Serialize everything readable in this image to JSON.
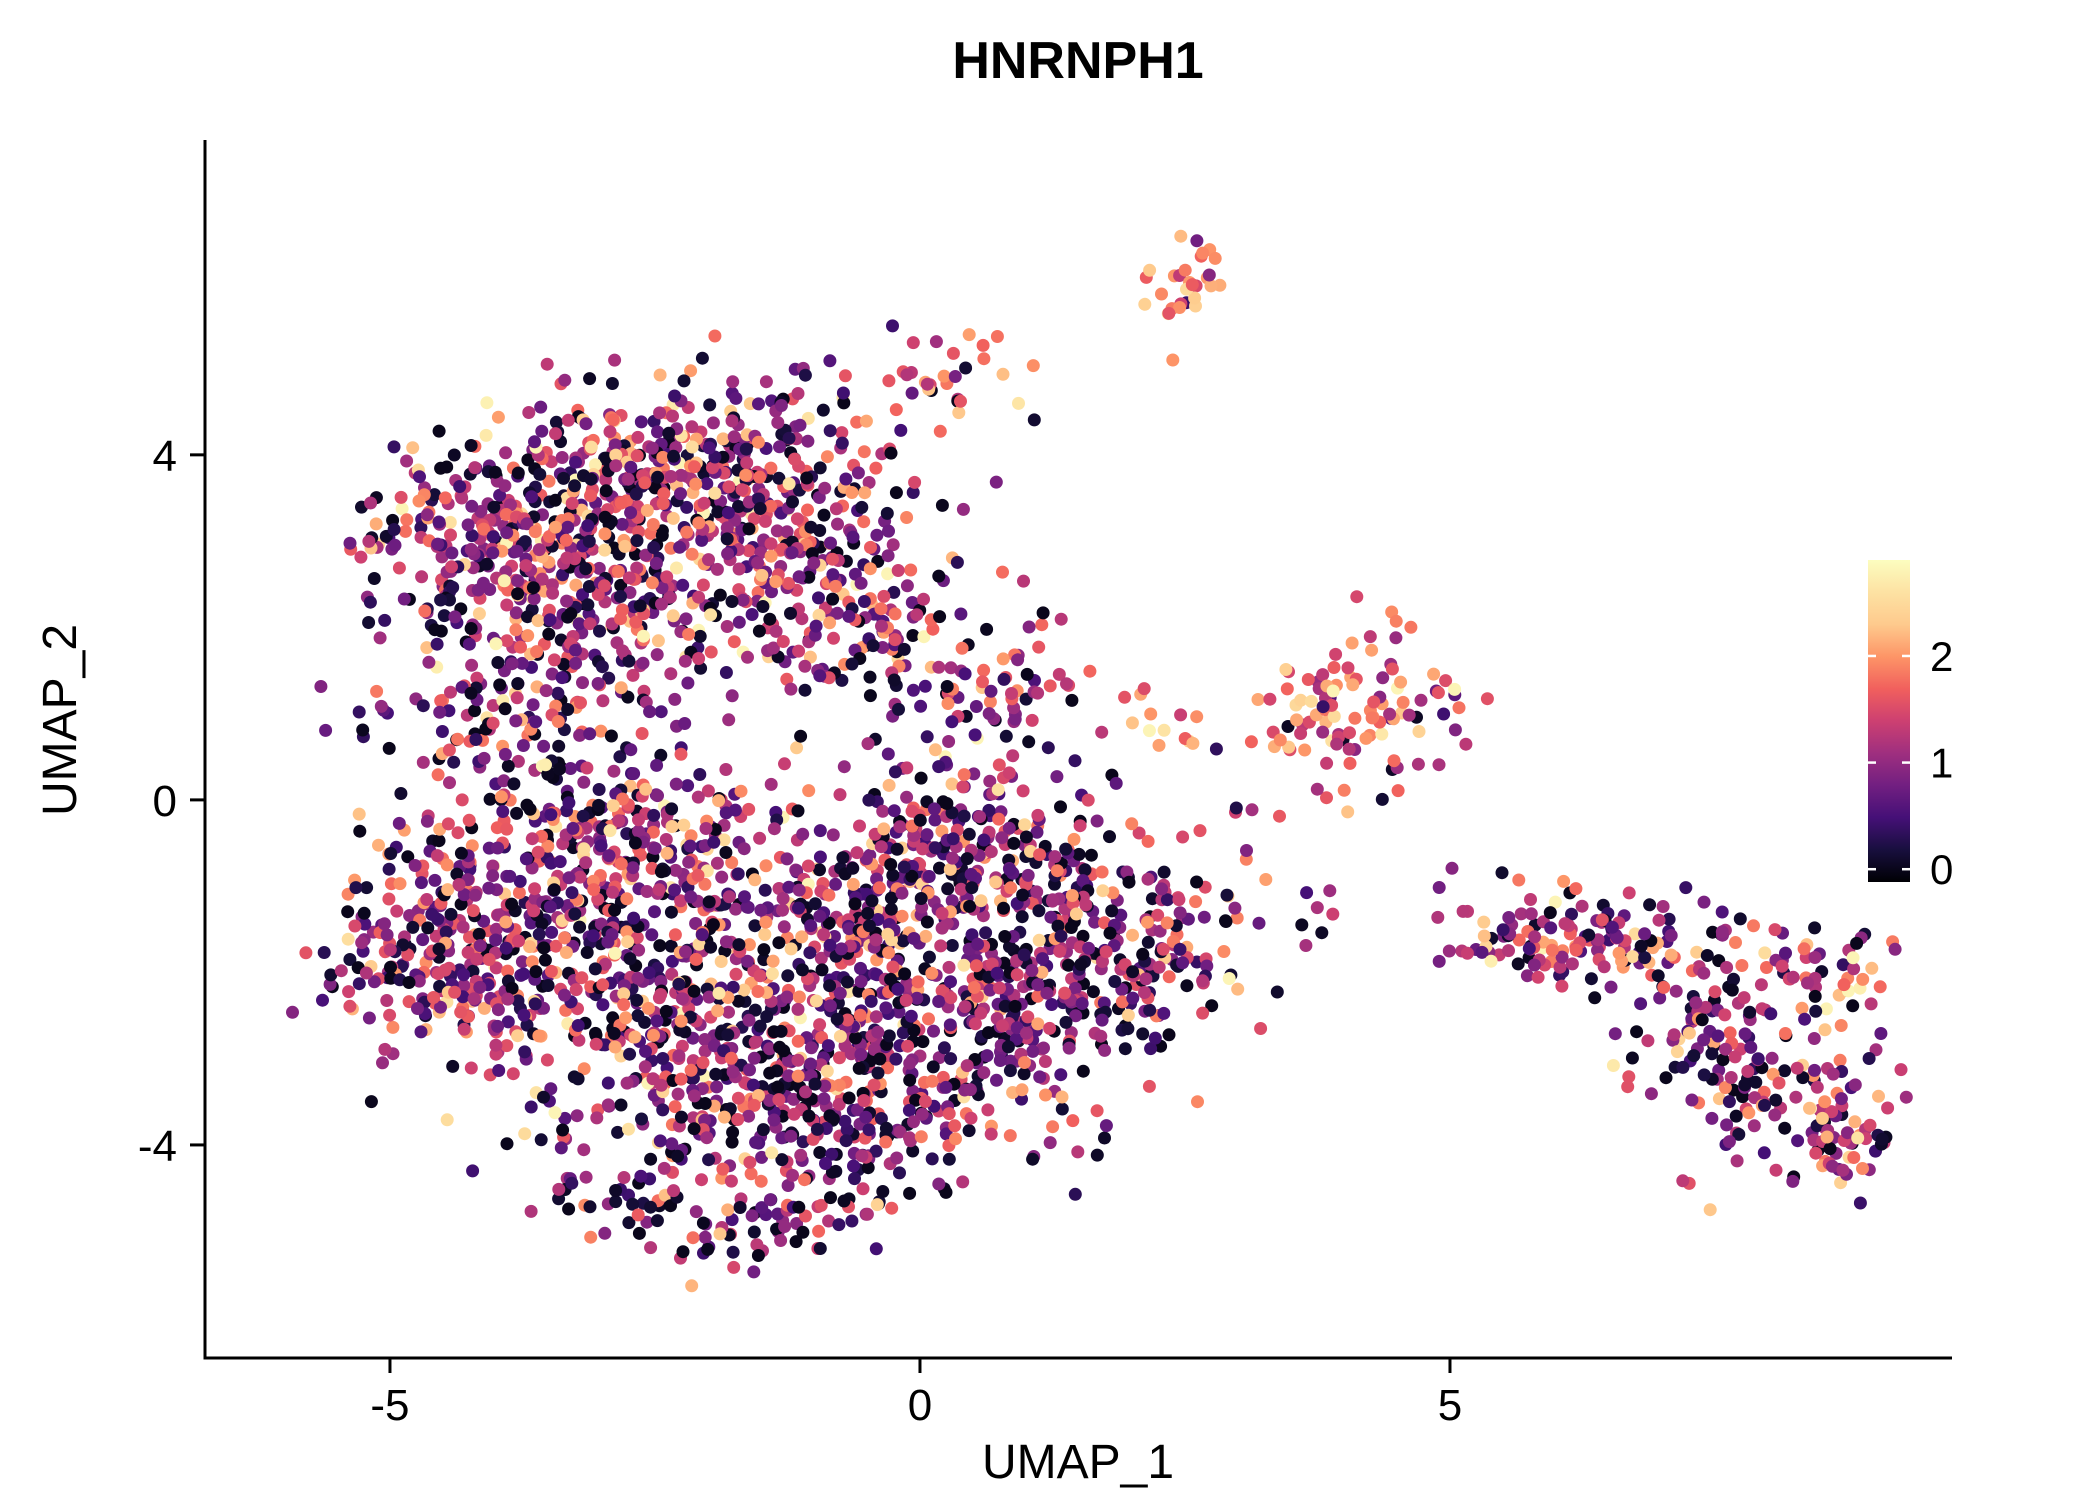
{
  "title": "HNRNPH1",
  "colors": {
    "background": "#ffffff",
    "axis": "#000000",
    "text": "#000000"
  },
  "chart_data": {
    "type": "scatter",
    "title": "HNRNPH1",
    "xlabel": "UMAP_1",
    "ylabel": "UMAP_2",
    "xlim": [
      -6.745,
      9.736
    ],
    "ylim": [
      -6.47,
      7.65
    ],
    "x_ticks": [
      -5,
      0,
      5
    ],
    "y_ticks": [
      -4,
      0,
      4
    ],
    "grid": false,
    "point_radius_px": 6.5,
    "value_range": [
      0,
      2.8
    ],
    "colorbar": {
      "position": "right",
      "ticks": [
        0,
        1,
        2
      ],
      "range": [
        -0.12,
        2.9
      ],
      "colormap": "magma",
      "stops": [
        "#000004",
        "#180f3e",
        "#451077",
        "#721f81",
        "#9f2f7f",
        "#cd4071",
        "#f1605d",
        "#fd9567",
        "#feca8d",
        "#fde2a3",
        "#fcfdbf"
      ]
    },
    "clusters": [
      {
        "cx": -3.4,
        "cy": 3.2,
        "sx": 0.75,
        "sy": 0.65,
        "n": 240,
        "mean": 1.15,
        "sd": 0.75,
        "zero_frac": 0.1
      },
      {
        "cx": -2.0,
        "cy": 3.9,
        "sx": 0.85,
        "sy": 0.55,
        "n": 300,
        "mean": 1.2,
        "sd": 0.75,
        "zero_frac": 0.1
      },
      {
        "cx": -1.3,
        "cy": 2.7,
        "sx": 0.7,
        "sy": 0.6,
        "n": 190,
        "mean": 1.2,
        "sd": 0.75,
        "zero_frac": 0.1
      },
      {
        "cx": -4.35,
        "cy": 2.9,
        "sx": 0.5,
        "sy": 0.55,
        "n": 130,
        "mean": 1.1,
        "sd": 0.7,
        "zero_frac": 0.12
      },
      {
        "cx": -0.4,
        "cy": 2.1,
        "sx": 0.55,
        "sy": 0.75,
        "n": 110,
        "mean": 1.15,
        "sd": 0.75,
        "zero_frac": 0.1
      },
      {
        "cx": -2.9,
        "cy": 2.2,
        "sx": 0.8,
        "sy": 0.5,
        "n": 150,
        "mean": 1.15,
        "sd": 0.75,
        "zero_frac": 0.1
      },
      {
        "cx": 0.2,
        "cy": 4.6,
        "sx": 0.35,
        "sy": 0.3,
        "n": 22,
        "mean": 1.5,
        "sd": 0.6,
        "zero_frac": 0.05
      },
      {
        "cx": 0.7,
        "cy": 5.0,
        "sx": 0.25,
        "sy": 0.2,
        "n": 8,
        "mean": 1.6,
        "sd": 0.5,
        "zero_frac": 0.05
      },
      {
        "cx": 2.5,
        "cy": 5.9,
        "sx": 0.22,
        "sy": 0.28,
        "n": 30,
        "mean": 1.8,
        "sd": 0.55,
        "zero_frac": 0.03
      },
      {
        "cx": -4.1,
        "cy": 0.9,
        "sx": 0.55,
        "sy": 0.6,
        "n": 90,
        "mean": 1.0,
        "sd": 0.7,
        "zero_frac": 0.12
      },
      {
        "cx": -3.1,
        "cy": 1.3,
        "sx": 0.5,
        "sy": 0.5,
        "n": 60,
        "mean": 1.0,
        "sd": 0.7,
        "zero_frac": 0.12
      },
      {
        "cx": 0.55,
        "cy": 0.95,
        "sx": 0.45,
        "sy": 0.55,
        "n": 55,
        "mean": 1.2,
        "sd": 0.7,
        "zero_frac": 0.1
      },
      {
        "cx": 1.1,
        "cy": 1.8,
        "sx": 0.3,
        "sy": 0.4,
        "n": 14,
        "mean": 1.2,
        "sd": 0.7,
        "zero_frac": 0.1
      },
      {
        "cx": -3.6,
        "cy": -1.5,
        "sx": 0.9,
        "sy": 0.85,
        "n": 340,
        "mean": 1.05,
        "sd": 0.75,
        "zero_frac": 0.13
      },
      {
        "cx": -2.2,
        "cy": -2.7,
        "sx": 0.9,
        "sy": 0.8,
        "n": 340,
        "mean": 1.05,
        "sd": 0.75,
        "zero_frac": 0.13
      },
      {
        "cx": -1.0,
        "cy": -3.6,
        "sx": 0.8,
        "sy": 0.65,
        "n": 240,
        "mean": 1.0,
        "sd": 0.75,
        "zero_frac": 0.14
      },
      {
        "cx": -2.6,
        "cy": -0.55,
        "sx": 0.9,
        "sy": 0.6,
        "n": 240,
        "mean": 1.1,
        "sd": 0.75,
        "zero_frac": 0.12
      },
      {
        "cx": -4.6,
        "cy": -1.9,
        "sx": 0.45,
        "sy": 0.7,
        "n": 120,
        "mean": 1.05,
        "sd": 0.7,
        "zero_frac": 0.13
      },
      {
        "cx": -0.6,
        "cy": -1.7,
        "sx": 0.8,
        "sy": 0.8,
        "n": 220,
        "mean": 1.05,
        "sd": 0.75,
        "zero_frac": 0.13
      },
      {
        "cx": 0.4,
        "cy": -2.6,
        "sx": 0.75,
        "sy": 0.7,
        "n": 200,
        "mean": 1.0,
        "sd": 0.75,
        "zero_frac": 0.14
      },
      {
        "cx": 1.4,
        "cy": -2.0,
        "sx": 0.7,
        "sy": 0.6,
        "n": 200,
        "mean": 1.0,
        "sd": 0.75,
        "zero_frac": 0.13
      },
      {
        "cx": 0.6,
        "cy": -0.6,
        "sx": 0.6,
        "sy": 0.55,
        "n": 120,
        "mean": 1.1,
        "sd": 0.7,
        "zero_frac": 0.12
      },
      {
        "cx": -2.6,
        "cy": -4.6,
        "sx": 0.5,
        "sy": 0.3,
        "n": 50,
        "mean": 0.95,
        "sd": 0.7,
        "zero_frac": 0.15
      },
      {
        "cx": -1.4,
        "cy": -4.9,
        "sx": 0.45,
        "sy": 0.28,
        "n": 45,
        "mean": 0.95,
        "sd": 0.7,
        "zero_frac": 0.15
      },
      {
        "cx": 2.2,
        "cy": -1.6,
        "sx": 0.35,
        "sy": 0.5,
        "n": 60,
        "mean": 1.1,
        "sd": 0.7,
        "zero_frac": 0.12
      },
      {
        "cx": -0.1,
        "cy": -0.9,
        "sx": 0.5,
        "sy": 0.5,
        "n": 90,
        "mean": 1.05,
        "sd": 0.7,
        "zero_frac": 0.13
      },
      {
        "cx": 1.3,
        "cy": -0.8,
        "sx": 0.4,
        "sy": 0.4,
        "n": 50,
        "mean": 1.05,
        "sd": 0.7,
        "zero_frac": 0.13
      },
      {
        "cx": 4.1,
        "cy": 1.0,
        "sx": 0.45,
        "sy": 0.42,
        "n": 95,
        "mean": 1.6,
        "sd": 0.6,
        "zero_frac": 0.05
      },
      {
        "cx": 3.3,
        "cy": 0.9,
        "sx": 0.3,
        "sy": 0.3,
        "n": 12,
        "mean": 1.6,
        "sd": 0.6,
        "zero_frac": 0.05
      },
      {
        "cx": 2.4,
        "cy": 0.85,
        "sx": 0.25,
        "sy": 0.15,
        "n": 8,
        "mean": 1.7,
        "sd": 0.5,
        "zero_frac": 0.05
      },
      {
        "cx": 2.0,
        "cy": 1.1,
        "sx": 0.12,
        "sy": 0.12,
        "n": 5,
        "mean": 2.1,
        "sd": 0.4,
        "zero_frac": 0.0
      },
      {
        "cx": 3.0,
        "cy": -0.5,
        "sx": 0.35,
        "sy": 0.4,
        "n": 10,
        "mean": 1.4,
        "sd": 0.6,
        "zero_frac": 0.08
      },
      {
        "cx": 3.55,
        "cy": -1.25,
        "sx": 0.3,
        "sy": 0.25,
        "n": 8,
        "mean": 1.4,
        "sd": 0.6,
        "zero_frac": 0.08
      },
      {
        "cx": 4.9,
        "cy": -1.3,
        "sx": 0.2,
        "sy": 0.2,
        "n": 4,
        "mean": 1.3,
        "sd": 0.5,
        "zero_frac": 0.1
      },
      {
        "cx": 6.55,
        "cy": -1.6,
        "sx": 0.6,
        "sy": 0.33,
        "n": 110,
        "mean": 1.15,
        "sd": 0.7,
        "zero_frac": 0.1
      },
      {
        "cx": 7.5,
        "cy": -2.5,
        "sx": 0.5,
        "sy": 0.5,
        "n": 90,
        "mean": 1.15,
        "sd": 0.7,
        "zero_frac": 0.1
      },
      {
        "cx": 8.1,
        "cy": -3.4,
        "sx": 0.5,
        "sy": 0.42,
        "n": 90,
        "mean": 1.2,
        "sd": 0.7,
        "zero_frac": 0.1
      },
      {
        "cx": 8.55,
        "cy": -1.95,
        "sx": 0.3,
        "sy": 0.28,
        "n": 40,
        "mean": 1.3,
        "sd": 0.7,
        "zero_frac": 0.08
      },
      {
        "cx": 8.75,
        "cy": -3.95,
        "sx": 0.32,
        "sy": 0.26,
        "n": 40,
        "mean": 1.4,
        "sd": 0.7,
        "zero_frac": 0.08
      },
      {
        "cx": 5.65,
        "cy": -1.7,
        "sx": 0.25,
        "sy": 0.22,
        "n": 25,
        "mean": 1.2,
        "sd": 0.6,
        "zero_frac": 0.1
      },
      {
        "cx": 5.15,
        "cy": -1.75,
        "sx": 0.12,
        "sy": 0.1,
        "n": 5,
        "mean": 1.3,
        "sd": 0.5,
        "zero_frac": 0.1
      }
    ]
  }
}
